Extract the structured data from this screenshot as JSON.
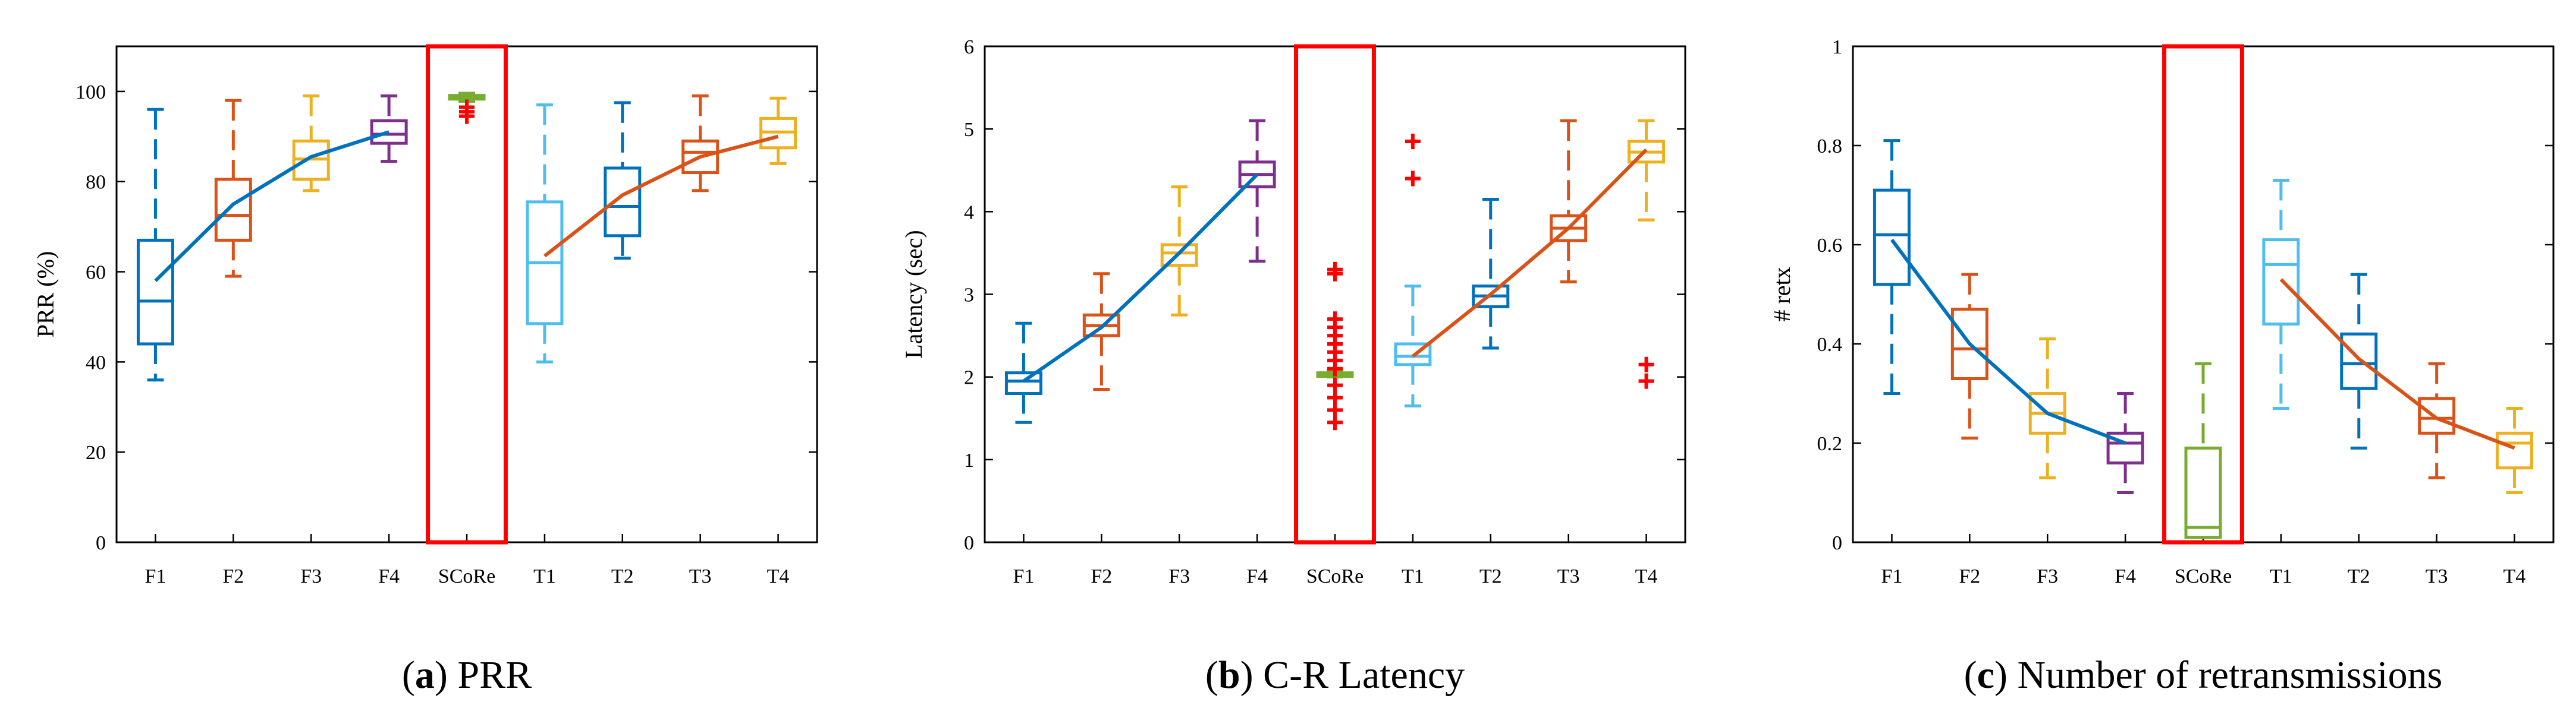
{
  "colors": {
    "blue": "#0072BD",
    "orange": "#D95319",
    "yellow": "#EDB120",
    "purple": "#7E2F8E",
    "green": "#77AC30",
    "cyan": "#4DBEEE",
    "red": "#FF0000"
  },
  "chart_data": [
    {
      "type": "box",
      "title": "",
      "caption": {
        "letter": "a",
        "text": " PRR"
      },
      "xlabel": "",
      "ylabel": "PRR (%)",
      "ylim": [
        0,
        110
      ],
      "yticks": [
        0,
        20,
        40,
        60,
        80,
        100
      ],
      "ytick_labels": [
        "0",
        "20",
        "40",
        "60",
        "80",
        "100"
      ],
      "categories": [
        "F1",
        "F2",
        "F3",
        "F4",
        "SCoRe",
        "T1",
        "T2",
        "T3",
        "T4"
      ],
      "box_colors": [
        "blue",
        "orange",
        "yellow",
        "purple",
        "green",
        "cyan",
        "blue",
        "orange",
        "yellow"
      ],
      "boxes": [
        {
          "min": 36,
          "q1": 44,
          "median": 53.5,
          "q3": 67,
          "max": 96
        },
        {
          "min": 59,
          "q1": 67,
          "median": 72.5,
          "q3": 80.5,
          "max": 98
        },
        {
          "min": 78,
          "q1": 80.5,
          "median": 85,
          "q3": 89,
          "max": 99
        },
        {
          "min": 84.5,
          "q1": 88.5,
          "median": 90.5,
          "q3": 93.5,
          "max": 99
        },
        {
          "min": 97.8,
          "q1": 98.3,
          "median": 98.7,
          "q3": 99.1,
          "max": 99.6
        },
        {
          "min": 40,
          "q1": 48.5,
          "median": 62,
          "q3": 75.5,
          "max": 97
        },
        {
          "min": 63,
          "q1": 68,
          "median": 74.5,
          "q3": 83,
          "max": 97.5
        },
        {
          "min": 78,
          "q1": 82,
          "median": 86.5,
          "q3": 89,
          "max": 99
        },
        {
          "min": 84,
          "q1": 87.5,
          "median": 91,
          "q3": 94,
          "max": 98.5
        }
      ],
      "outliers": [
        {
          "category": "SCoRe",
          "values": [
            94.5,
            95.5,
            96.5
          ]
        }
      ],
      "trend_lines": [
        {
          "color": "blue",
          "categories": [
            "F1",
            "F2",
            "F3",
            "F4"
          ],
          "values": [
            58,
            75,
            85.5,
            91
          ]
        },
        {
          "color": "orange",
          "categories": [
            "T1",
            "T2",
            "T3",
            "T4"
          ],
          "values": [
            63.5,
            77,
            85.5,
            90
          ]
        }
      ],
      "highlight": {
        "category": "SCoRe",
        "color": "red"
      }
    },
    {
      "type": "box",
      "title": "",
      "caption": {
        "letter": "b",
        "text": " C-R Latency"
      },
      "xlabel": "",
      "ylabel": "Latency (sec)",
      "ylim": [
        0,
        6
      ],
      "yticks": [
        0,
        1,
        2,
        3,
        4,
        5,
        6
      ],
      "ytick_labels": [
        "0",
        "1",
        "2",
        "3",
        "4",
        "5",
        "6"
      ],
      "categories": [
        "F1",
        "F2",
        "F3",
        "F4",
        "SCoRe",
        "T1",
        "T2",
        "T3",
        "T4"
      ],
      "box_colors": [
        "blue",
        "orange",
        "yellow",
        "purple",
        "green",
        "cyan",
        "blue",
        "orange",
        "yellow"
      ],
      "boxes": [
        {
          "min": 1.45,
          "q1": 1.8,
          "median": 1.95,
          "q3": 2.05,
          "max": 2.65
        },
        {
          "min": 1.85,
          "q1": 2.5,
          "median": 2.62,
          "q3": 2.75,
          "max": 3.25
        },
        {
          "min": 2.75,
          "q1": 3.35,
          "median": 3.5,
          "q3": 3.6,
          "max": 4.3
        },
        {
          "min": 3.4,
          "q1": 4.3,
          "median": 4.45,
          "q3": 4.6,
          "max": 5.1
        },
        {
          "min": 2.0,
          "q1": 2.02,
          "median": 2.03,
          "q3": 2.05,
          "max": 2.08
        },
        {
          "min": 1.65,
          "q1": 2.15,
          "median": 2.25,
          "q3": 2.4,
          "max": 3.1
        },
        {
          "min": 2.35,
          "q1": 2.85,
          "median": 2.98,
          "q3": 3.1,
          "max": 4.15
        },
        {
          "min": 3.15,
          "q1": 3.65,
          "median": 3.8,
          "q3": 3.95,
          "max": 5.1
        },
        {
          "min": 3.9,
          "q1": 4.6,
          "median": 4.72,
          "q3": 4.85,
          "max": 5.1
        }
      ],
      "outliers": [
        {
          "category": "SCoRe",
          "values": [
            1.45,
            1.6,
            1.75,
            1.9,
            2.1,
            2.2,
            2.3,
            2.4,
            2.5,
            2.6,
            2.7,
            3.25,
            3.3
          ]
        },
        {
          "category": "T1",
          "values": [
            4.4,
            4.85
          ]
        },
        {
          "category": "T4",
          "values": [
            1.95,
            2.15
          ]
        }
      ],
      "trend_lines": [
        {
          "color": "blue",
          "categories": [
            "F1",
            "F2",
            "F3",
            "F4"
          ],
          "values": [
            1.95,
            2.6,
            3.5,
            4.45
          ]
        },
        {
          "color": "orange",
          "categories": [
            "T1",
            "T2",
            "T3",
            "T4"
          ],
          "values": [
            2.25,
            3.0,
            3.8,
            4.75
          ]
        }
      ],
      "highlight": {
        "category": "SCoRe",
        "color": "red"
      }
    },
    {
      "type": "box",
      "title": "",
      "caption": {
        "letter": "c",
        "text": " Number of retransmissions"
      },
      "xlabel": "",
      "ylabel": "# retx",
      "ylim": [
        0,
        1
      ],
      "yticks": [
        0,
        0.2,
        0.4,
        0.6,
        0.8,
        1
      ],
      "ytick_labels": [
        "0",
        "0.2",
        "0.4",
        "0.6",
        "0.8",
        "1"
      ],
      "categories": [
        "F1",
        "F2",
        "F3",
        "F4",
        "SCoRe",
        "T1",
        "T2",
        "T3",
        "T4"
      ],
      "box_colors": [
        "blue",
        "orange",
        "yellow",
        "purple",
        "green",
        "cyan",
        "blue",
        "orange",
        "yellow"
      ],
      "boxes": [
        {
          "min": 0.3,
          "q1": 0.52,
          "median": 0.62,
          "q3": 0.71,
          "max": 0.81
        },
        {
          "min": 0.21,
          "q1": 0.33,
          "median": 0.39,
          "q3": 0.47,
          "max": 0.54
        },
        {
          "min": 0.13,
          "q1": 0.22,
          "median": 0.26,
          "q3": 0.3,
          "max": 0.41
        },
        {
          "min": 0.1,
          "q1": 0.16,
          "median": 0.2,
          "q3": 0.22,
          "max": 0.3
        },
        {
          "min": 0.01,
          "q1": 0.01,
          "median": 0.03,
          "q3": 0.19,
          "max": 0.36
        },
        {
          "min": 0.27,
          "q1": 0.44,
          "median": 0.56,
          "q3": 0.61,
          "max": 0.73
        },
        {
          "min": 0.19,
          "q1": 0.31,
          "median": 0.36,
          "q3": 0.42,
          "max": 0.54
        },
        {
          "min": 0.13,
          "q1": 0.22,
          "median": 0.25,
          "q3": 0.29,
          "max": 0.36
        },
        {
          "min": 0.1,
          "q1": 0.15,
          "median": 0.2,
          "q3": 0.22,
          "max": 0.27
        }
      ],
      "outliers": [],
      "trend_lines": [
        {
          "color": "blue",
          "categories": [
            "F1",
            "F2",
            "F3",
            "F4"
          ],
          "values": [
            0.61,
            0.4,
            0.26,
            0.2
          ]
        },
        {
          "color": "orange",
          "categories": [
            "T1",
            "T2",
            "T3",
            "T4"
          ],
          "values": [
            0.53,
            0.37,
            0.25,
            0.19
          ]
        }
      ],
      "highlight": {
        "category": "SCoRe",
        "color": "red"
      }
    }
  ]
}
